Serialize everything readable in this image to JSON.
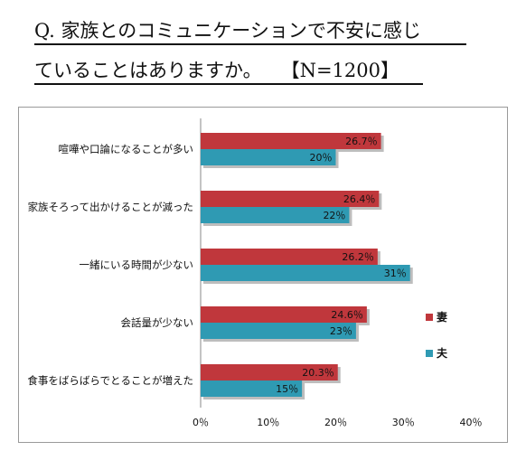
{
  "title": {
    "line1": "Q. 家族とのコミュニケーションで不安に感じ",
    "line2": "ていることはありますか。　　【N=1200】"
  },
  "colors": {
    "wife": "#c0373c",
    "husband": "#2f9ab3"
  },
  "chart_data": {
    "type": "bar",
    "orientation": "horizontal",
    "categories": [
      "喧嘩や口論になることが多い",
      "家族そろって出かけることが減った",
      "一緒にいる時間が少ない",
      "会話量が少ない",
      "食事をばらばらでとることが増えた"
    ],
    "series": [
      {
        "name": "妻",
        "values": [
          26.7,
          26.4,
          26.2,
          24.6,
          20.3
        ],
        "labels": [
          "26.7％",
          "26.4％",
          "26.2％",
          "24.6％",
          "20.3％"
        ]
      },
      {
        "name": "夫",
        "values": [
          20,
          22,
          31,
          23,
          15
        ],
        "labels": [
          "20％",
          "22％",
          "31％",
          "23％",
          "15％"
        ]
      }
    ],
    "xlim": [
      0,
      40
    ],
    "xticks": [
      "0％",
      "10％",
      "20％",
      "30％",
      "40％"
    ],
    "legend": "right",
    "grid": false
  }
}
